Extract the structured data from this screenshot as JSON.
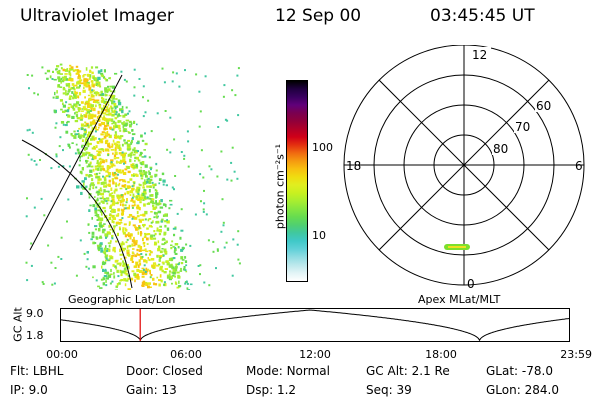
{
  "header": {
    "title": "Ultraviolet Imager",
    "date": "12 Sep 00",
    "time": "03:45:45 UT"
  },
  "colorbar": {
    "unit_label": "photon cm⁻²s⁻¹",
    "tick_labels": [
      "100",
      "10"
    ],
    "colors_top_to_bottom": [
      "#000000",
      "#200040",
      "#3a0060",
      "#60007a",
      "#7a0050",
      "#90003a",
      "#b00028",
      "#d00018",
      "#e43010",
      "#f06a10",
      "#f59a10",
      "#f8c010",
      "#f0dd10",
      "#e0ee20",
      "#c8f020",
      "#a8ee30",
      "#86e640",
      "#66dc50",
      "#50d070",
      "#40c8a0",
      "#40c8c8",
      "#60d0d8",
      "#90dce2",
      "#bce8ec",
      "#e2f4f6",
      "#ffffff"
    ]
  },
  "map": {
    "caption": "Geographic Lat/Lon"
  },
  "polar": {
    "caption": "Apex MLat/MLT",
    "mlt_labels": [
      "12",
      "18",
      "6",
      "0"
    ],
    "mlat_labels": [
      "60",
      "70",
      "80"
    ]
  },
  "timeline": {
    "ylabel": "GC Alt",
    "yticks": [
      "9.0",
      "1.8"
    ],
    "xticks": [
      "00:00",
      "06:00",
      "12:00",
      "18:00",
      "23:59"
    ],
    "marker_time_hours": 3.76
  },
  "info": [
    {
      "label": "Flt:",
      "value": "LBHL"
    },
    {
      "label": "Door:",
      "value": "Closed"
    },
    {
      "label": "Mode:",
      "value": "Normal"
    },
    {
      "label": "GC Alt:",
      "value": "2.1 Re"
    },
    {
      "label": "GLat:",
      "value": "-78.0"
    },
    {
      "label": "IP:",
      "value": "9.0"
    },
    {
      "label": "Gain:",
      "value": "13"
    },
    {
      "label": "Dsp:",
      "value": "1.2"
    },
    {
      "label": "Seq:",
      "value": "39"
    },
    {
      "label": "GLon:",
      "value": "284.0"
    }
  ]
}
